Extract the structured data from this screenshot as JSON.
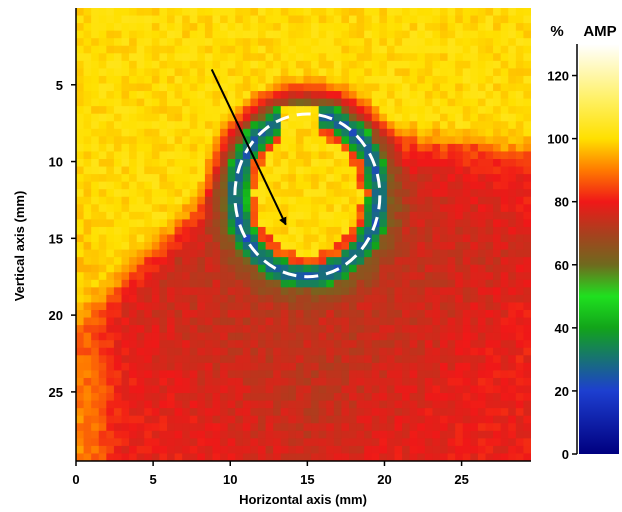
{
  "chart_data": {
    "type": "heatmap",
    "title": "",
    "xlabel": "Horizontal axis (mm)",
    "ylabel": "Vertical axis (mm)",
    "xlim": [
      0,
      29.5
    ],
    "ylim": [
      0,
      29.5
    ],
    "y_inverted": true,
    "x_ticks": [
      0,
      5,
      10,
      15,
      20,
      25
    ],
    "y_ticks": [
      5,
      10,
      15,
      20,
      25
    ],
    "colorbar": {
      "unit_label": "%",
      "title": "AMP",
      "range": [
        0,
        130
      ],
      "ticks": [
        0,
        20,
        40,
        60,
        80,
        100,
        120
      ],
      "colors": [
        {
          "value": 0,
          "color": "#00007f"
        },
        {
          "value": 20,
          "color": "#1d3fd0"
        },
        {
          "value": 40,
          "color": "#12a41a"
        },
        {
          "value": 50,
          "color": "#1fe01f"
        },
        {
          "value": 60,
          "color": "#6f6a1e"
        },
        {
          "value": 70,
          "color": "#a8401e"
        },
        {
          "value": 80,
          "color": "#f01818"
        },
        {
          "value": 90,
          "color": "#ff7a00"
        },
        {
          "value": 100,
          "color": "#ffe000"
        },
        {
          "value": 112,
          "color": "#fff060"
        },
        {
          "value": 130,
          "color": "#ffffff"
        }
      ]
    },
    "regions": [
      {
        "name": "saturated",
        "value": 100
      },
      {
        "name": "background-upper",
        "value": 76
      },
      {
        "name": "background-lower",
        "value": 73
      },
      {
        "name": "defect-rim",
        "value": 75
      },
      {
        "name": "defect-ring",
        "value": 42
      },
      {
        "name": "defect-core",
        "value": 100
      }
    ],
    "annotations": [
      {
        "type": "ellipse",
        "style": "dashed",
        "color": "#ffffff",
        "cx": 15.0,
        "cy": 12.2,
        "rx": 4.7,
        "ry": 5.3
      },
      {
        "type": "arrow",
        "color": "#000000",
        "from": [
          8.8,
          4.0
        ],
        "to": [
          13.6,
          14.1
        ]
      }
    ]
  }
}
